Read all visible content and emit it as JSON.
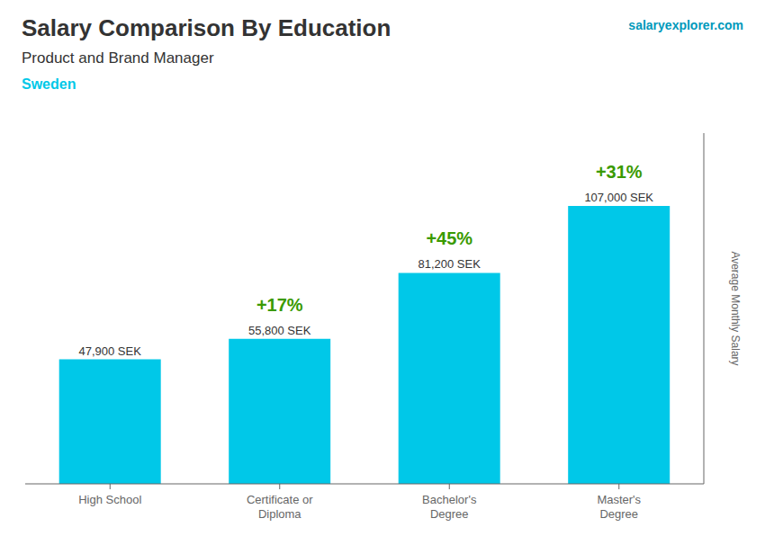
{
  "chart_data": {
    "type": "bar",
    "title": "Salary Comparison By Education",
    "subtitle": "Product and Brand Manager",
    "ylabel": "Average Monthly Salary",
    "annotations": [
      "Sweden",
      "salaryexplorer.com"
    ],
    "categories": [
      "High School",
      "Certificate or\nDiploma",
      "Bachelor's\nDegree",
      "Master's\nDegree"
    ],
    "values": [
      47900,
      55800,
      81200,
      107000
    ],
    "value_labels": [
      "47,900 SEK",
      "55,800 SEK",
      "81,200 SEK",
      "107,000 SEK"
    ],
    "data_labels": true,
    "growth_labels": [
      "+17%",
      "+45%",
      "+31%"
    ],
    "color": "#00c8e8",
    "ylim": [
      0,
      135000
    ],
    "grid": false,
    "tick_labels": "x"
  }
}
